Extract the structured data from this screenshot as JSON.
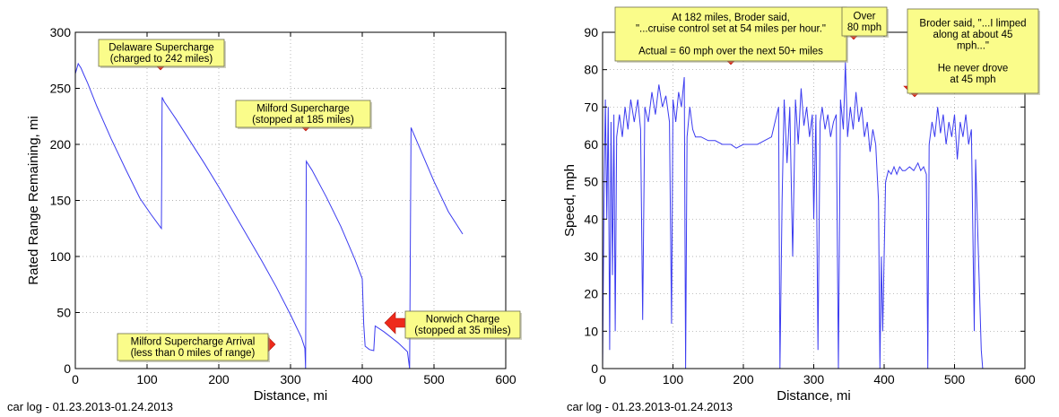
{
  "chart_data": [
    {
      "type": "line",
      "title": "",
      "xlabel": "Distance, mi",
      "ylabel": "Rated Range Remaining, mi",
      "xlim": [
        0,
        600
      ],
      "ylim": [
        0,
        300
      ],
      "xticks": [
        0,
        100,
        200,
        300,
        400,
        500,
        600
      ],
      "yticks": [
        0,
        50,
        100,
        150,
        200,
        250,
        300
      ],
      "grid": "dotted",
      "line_color": "#3b3bf0",
      "series": [
        {
          "values": [
            [
              0,
              263
            ],
            [
              4,
              272
            ],
            [
              8,
              268
            ],
            [
              12,
              262
            ],
            [
              17,
              255
            ],
            [
              30,
              234
            ],
            [
              50,
              205
            ],
            [
              70,
              178
            ],
            [
              90,
              152
            ],
            [
              105,
              138
            ],
            [
              120,
              125
            ],
            [
              121,
              242
            ],
            [
              124,
              238
            ],
            [
              140,
              223
            ],
            [
              160,
              203
            ],
            [
              180,
              183
            ],
            [
              200,
              162
            ],
            [
              220,
              140
            ],
            [
              240,
              118
            ],
            [
              260,
              96
            ],
            [
              280,
              73
            ],
            [
              300,
              48
            ],
            [
              315,
              28
            ],
            [
              320,
              18
            ],
            [
              321,
              0
            ],
            [
              322,
              185
            ],
            [
              330,
              177
            ],
            [
              350,
              153
            ],
            [
              370,
              127
            ],
            [
              390,
              97
            ],
            [
              400,
              80
            ],
            [
              402,
              40
            ],
            [
              404,
              20
            ],
            [
              410,
              17
            ],
            [
              416,
              16
            ],
            [
              418,
              38
            ],
            [
              430,
              33
            ],
            [
              450,
              23
            ],
            [
              463,
              15
            ],
            [
              466,
              0
            ],
            [
              468,
              215
            ],
            [
              480,
              197
            ],
            [
              500,
              167
            ],
            [
              520,
              140
            ],
            [
              540,
              120
            ]
          ]
        }
      ],
      "annotations": [
        {
          "text": "Delaware Supercharge\n(charged to 242 miles)",
          "x": 120,
          "y": 242
        },
        {
          "text": "Milford Supercharge\n(stopped at 185 miles)",
          "x": 322,
          "y": 195
        },
        {
          "text": "Norwich Charge\n(stopped at 35 miles)",
          "x": 418,
          "y": 38
        },
        {
          "text": "Milford Supercharge Arrival\n(less than 0 miles of range)",
          "x": 315,
          "y": 12
        }
      ],
      "caption": "car log - 01.23.2013-01.24.2013"
    },
    {
      "type": "line",
      "title": "",
      "xlabel": "Distance, mi",
      "ylabel": "Speed, mph",
      "xlim": [
        0,
        600
      ],
      "ylim": [
        0,
        90
      ],
      "xticks": [
        0,
        100,
        200,
        300,
        400,
        500,
        600
      ],
      "yticks": [
        0,
        10,
        20,
        30,
        40,
        50,
        60,
        70,
        80,
        90
      ],
      "grid": "dotted",
      "line_color": "#3b3bf0",
      "series": [
        {
          "values": [
            [
              0,
              0
            ],
            [
              2,
              45
            ],
            [
              4,
              72
            ],
            [
              6,
              40
            ],
            [
              8,
              70
            ],
            [
              10,
              5
            ],
            [
              12,
              66
            ],
            [
              14,
              25
            ],
            [
              16,
              68
            ],
            [
              18,
              10
            ],
            [
              20,
              62
            ],
            [
              24,
              68
            ],
            [
              28,
              62
            ],
            [
              32,
              70
            ],
            [
              36,
              64
            ],
            [
              40,
              72
            ],
            [
              45,
              66
            ],
            [
              50,
              72
            ],
            [
              54,
              64
            ],
            [
              57,
              13
            ],
            [
              60,
              70
            ],
            [
              65,
              66
            ],
            [
              70,
              74
            ],
            [
              75,
              68
            ],
            [
              80,
              76
            ],
            [
              85,
              70
            ],
            [
              90,
              73
            ],
            [
              95,
              66
            ],
            [
              98,
              12
            ],
            [
              100,
              72
            ],
            [
              104,
              66
            ],
            [
              108,
              74
            ],
            [
              112,
              70
            ],
            [
              116,
              78
            ],
            [
              118,
              0
            ],
            [
              120,
              62
            ],
            [
              124,
              70
            ],
            [
              128,
              64
            ],
            [
              132,
              62
            ],
            [
              140,
              62
            ],
            [
              150,
              61
            ],
            [
              160,
              61
            ],
            [
              170,
              60
            ],
            [
              180,
              60
            ],
            [
              182,
              60
            ],
            [
              190,
              59
            ],
            [
              200,
              60
            ],
            [
              210,
              60
            ],
            [
              220,
              60
            ],
            [
              230,
              61
            ],
            [
              240,
              62
            ],
            [
              245,
              66
            ],
            [
              250,
              70
            ],
            [
              252,
              0
            ],
            [
              255,
              45
            ],
            [
              258,
              72
            ],
            [
              262,
              55
            ],
            [
              266,
              70
            ],
            [
              270,
              30
            ],
            [
              274,
              72
            ],
            [
              278,
              60
            ],
            [
              282,
              75
            ],
            [
              286,
              65
            ],
            [
              290,
              70
            ],
            [
              294,
              62
            ],
            [
              298,
              68
            ],
            [
              300,
              40
            ],
            [
              303,
              68
            ],
            [
              306,
              5
            ],
            [
              309,
              66
            ],
            [
              312,
              70
            ],
            [
              316,
              64
            ],
            [
              320,
              68
            ],
            [
              324,
              62
            ],
            [
              328,
              66
            ],
            [
              332,
              68
            ],
            [
              335,
              0
            ],
            [
              338,
              72
            ],
            [
              342,
              64
            ],
            [
              345,
              82
            ],
            [
              348,
              62
            ],
            [
              352,
              70
            ],
            [
              356,
              64
            ],
            [
              360,
              74
            ],
            [
              364,
              66
            ],
            [
              368,
              70
            ],
            [
              372,
              62
            ],
            [
              376,
              66
            ],
            [
              380,
              58
            ],
            [
              384,
              64
            ],
            [
              388,
              60
            ],
            [
              392,
              45
            ],
            [
              394,
              0
            ],
            [
              396,
              30
            ],
            [
              398,
              10
            ],
            [
              402,
              50
            ],
            [
              406,
              53
            ],
            [
              410,
              52
            ],
            [
              414,
              54
            ],
            [
              418,
              52
            ],
            [
              422,
              54
            ],
            [
              426,
              53
            ],
            [
              430,
              53
            ],
            [
              436,
              54
            ],
            [
              442,
              53
            ],
            [
              448,
              55
            ],
            [
              452,
              53
            ],
            [
              456,
              54
            ],
            [
              460,
              52
            ],
            [
              462,
              0
            ],
            [
              464,
              60
            ],
            [
              468,
              66
            ],
            [
              472,
              62
            ],
            [
              476,
              70
            ],
            [
              480,
              63
            ],
            [
              484,
              68
            ],
            [
              488,
              60
            ],
            [
              492,
              66
            ],
            [
              496,
              62
            ],
            [
              500,
              68
            ],
            [
              504,
              56
            ],
            [
              508,
              66
            ],
            [
              512,
              62
            ],
            [
              516,
              68
            ],
            [
              520,
              60
            ],
            [
              524,
              64
            ],
            [
              528,
              10
            ],
            [
              530,
              56
            ],
            [
              534,
              30
            ],
            [
              538,
              5
            ],
            [
              540,
              0
            ]
          ]
        }
      ],
      "annotations": [
        {
          "text": "At 182 miles, Broder said,\n\"...cruise control set at 54 miles per hour.\"\n\nActual = 60 mph over the next 50+ miles",
          "x": 182,
          "y": 78
        },
        {
          "text": "Over\n80 mph",
          "x": 345,
          "y": 83
        },
        {
          "text": "Broder said, \"...I limped\nalong at about 45\nmph...\"\n\nHe never drove\nat 45 mph",
          "x": 440,
          "y": 68
        }
      ],
      "caption": "car log - 01.23.2013-01.24.2013"
    }
  ]
}
